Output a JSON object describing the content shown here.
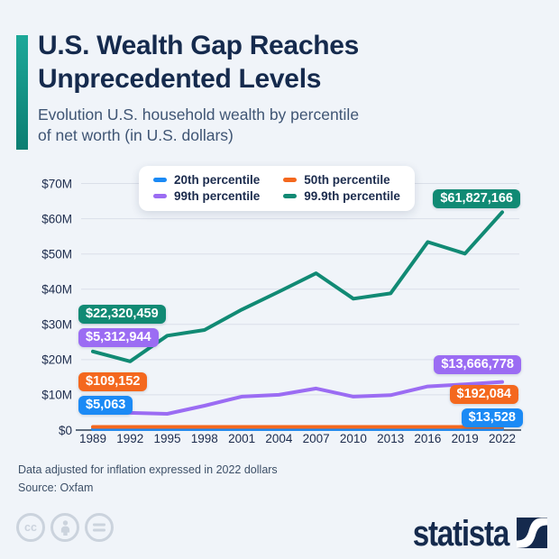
{
  "header": {
    "title_line1": "U.S. Wealth Gap Reaches",
    "title_line2": "Unprecedented Levels",
    "subtitle_line1": "Evolution U.S. household wealth by percentile",
    "subtitle_line2": "of net worth (in U.S. dollars)"
  },
  "chart_data": {
    "type": "line",
    "x": [
      1989,
      1992,
      1995,
      1998,
      2001,
      2004,
      2007,
      2010,
      2013,
      2016,
      2019,
      2022
    ],
    "ylim_usd": [
      0,
      70000000
    ],
    "y_ticks": [
      {
        "value_musd": 0,
        "label": "$0"
      },
      {
        "value_musd": 10,
        "label": "$10M"
      },
      {
        "value_musd": 20,
        "label": "$20M"
      },
      {
        "value_musd": 30,
        "label": "$30M"
      },
      {
        "value_musd": 40,
        "label": "$40M"
      },
      {
        "value_musd": 50,
        "label": "$50M"
      },
      {
        "value_musd": 60,
        "label": "$60M"
      },
      {
        "value_musd": 70,
        "label": "$70M"
      }
    ],
    "grid": "horizontal",
    "legend_position": "top-center",
    "series": [
      {
        "name": "20th percentile",
        "color": "#1b8af5",
        "start_value_usd": 5063,
        "end_value_usd": 13528,
        "start_label": "$5,063",
        "end_label": "$13,528",
        "values_musd": [
          0.005,
          0.005,
          0.006,
          0.007,
          0.008,
          0.009,
          0.01,
          0.008,
          0.009,
          0.011,
          0.012,
          0.0135
        ]
      },
      {
        "name": "50th percentile",
        "color": "#f4681e",
        "start_value_usd": 109152,
        "end_value_usd": 192084,
        "start_label": "$109,152",
        "end_label": "$192,084",
        "values_musd": [
          0.109,
          0.105,
          0.11,
          0.13,
          0.15,
          0.16,
          0.17,
          0.13,
          0.12,
          0.15,
          0.17,
          0.192
        ]
      },
      {
        "name": "99th percentile",
        "color": "#9b6cf3",
        "start_value_usd": 5312944,
        "end_value_usd": 13666778,
        "start_label": "$5,312,944",
        "end_label": "$13,666,778",
        "values_musd": [
          5.31,
          4.9,
          4.6,
          6.9,
          9.5,
          10.0,
          11.8,
          9.5,
          9.9,
          12.4,
          13.0,
          13.67
        ]
      },
      {
        "name": "99.9th percentile",
        "color": "#118a74",
        "start_value_usd": 22320459,
        "end_value_usd": 61827166,
        "start_label": "$22,320,459",
        "end_label": "$61,827,166",
        "values_musd": [
          22.32,
          19.5,
          26.8,
          28.4,
          34.2,
          39.3,
          44.5,
          37.3,
          38.8,
          53.4,
          50.1,
          61.83
        ]
      }
    ],
    "layout": {
      "draw_floor_musd": {
        "20th percentile": 0.28,
        "50th percentile": 0.9
      }
    }
  },
  "footer": {
    "note": "Data adjusted for inflation expressed in 2022 dollars",
    "source": "Source: Oxfam",
    "cc_label": "cc"
  },
  "branding": {
    "logo_text": "statista",
    "navy": "#152a4d",
    "accent_teal": "#118a74"
  }
}
